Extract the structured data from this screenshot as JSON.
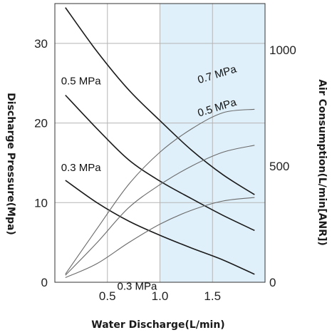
{
  "chart_data": {
    "type": "line",
    "xlabel": "Water Discharge(L/min)",
    "ylabel_left": "Discharge Pressure(Mpa)",
    "ylabel_right": "Air Consumption(L/min[ANR])",
    "xlim": [
      0,
      2.0
    ],
    "ylim_left": [
      0,
      35
    ],
    "ylim_right": [
      0,
      1200
    ],
    "x_ticks": [
      "0.5",
      "1.0",
      "1.5"
    ],
    "y_left_ticks": [
      "0",
      "10",
      "20",
      "30"
    ],
    "y_right_ticks": [
      "0",
      "500",
      "1000"
    ],
    "grid": true,
    "highlight_x_range": [
      1.0,
      2.0
    ],
    "highlight_color": "#dff0fa",
    "series": [
      {
        "name": "0.7 MPa",
        "axis": "left",
        "stroke": "#1a1a1a",
        "points": [
          [
            0.1,
            34.5
          ],
          [
            0.4,
            29
          ],
          [
            0.7,
            24.2
          ],
          [
            1.0,
            20.3
          ],
          [
            1.3,
            16.6
          ],
          [
            1.6,
            13.5
          ],
          [
            1.9,
            11.0
          ]
        ]
      },
      {
        "name": "0.5 MPa",
        "axis": "left",
        "stroke": "#1a1a1a",
        "points": [
          [
            0.1,
            23.5
          ],
          [
            0.4,
            19.3
          ],
          [
            0.7,
            15.4
          ],
          [
            1.0,
            12.7
          ],
          [
            1.3,
            10.5
          ],
          [
            1.6,
            8.4
          ],
          [
            1.9,
            6.5
          ]
        ]
      },
      {
        "name": "0.3 MPa",
        "axis": "left",
        "stroke": "#1a1a1a",
        "points": [
          [
            0.1,
            12.8
          ],
          [
            0.4,
            10.0
          ],
          [
            0.7,
            7.7
          ],
          [
            1.0,
            5.9
          ],
          [
            1.3,
            4.3
          ],
          [
            1.6,
            2.8
          ],
          [
            1.9,
            1.0
          ]
        ]
      },
      {
        "name": "0.7 MPa",
        "axis": "right",
        "stroke": "#6a6a6a",
        "points": [
          [
            0.1,
            35
          ],
          [
            0.4,
            230
          ],
          [
            0.7,
            420
          ],
          [
            1.0,
            560
          ],
          [
            1.3,
            660
          ],
          [
            1.6,
            730
          ],
          [
            1.9,
            745
          ]
        ]
      },
      {
        "name": "0.5 MPa",
        "axis": "right",
        "stroke": "#6a6a6a",
        "points": [
          [
            0.1,
            30
          ],
          [
            0.4,
            170
          ],
          [
            0.7,
            320
          ],
          [
            1.0,
            420
          ],
          [
            1.3,
            500
          ],
          [
            1.6,
            560
          ],
          [
            1.9,
            590
          ]
        ]
      },
      {
        "name": "0.3 MPa",
        "axis": "right",
        "stroke": "#6a6a6a",
        "points": [
          [
            0.1,
            20
          ],
          [
            0.4,
            80
          ],
          [
            0.7,
            170
          ],
          [
            1.0,
            250
          ],
          [
            1.3,
            310
          ],
          [
            1.6,
            350
          ],
          [
            1.9,
            365
          ]
        ]
      }
    ]
  }
}
